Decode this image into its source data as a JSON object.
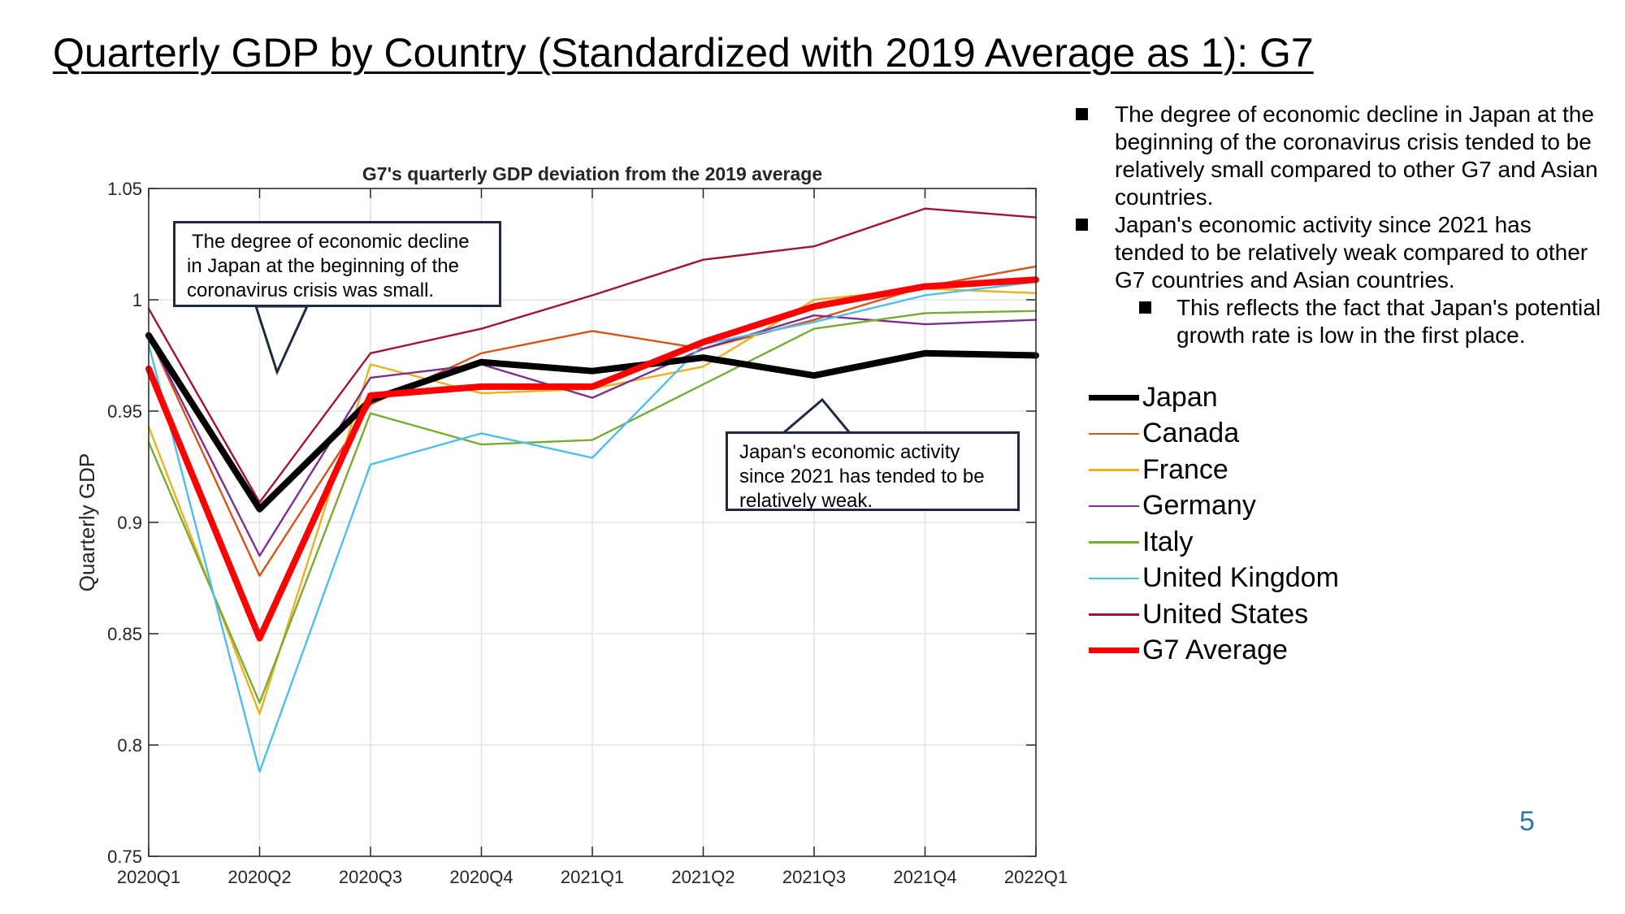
{
  "slide": {
    "title": "Quarterly GDP by Country (Standardized with 2019 Average as 1): G7",
    "page_number": "5"
  },
  "bullets": [
    {
      "level": 1,
      "lines": [
        "The degree of economic decline in Japan at the",
        "beginning of the coronavirus crisis tended to be",
        "relatively small compared to other G7 and Asian",
        "countries."
      ]
    },
    {
      "level": 1,
      "lines": [
        "Japan's economic activity since 2021 has",
        "tended to be relatively weak compared to other",
        "G7 countries and Asian countries."
      ]
    },
    {
      "level": 2,
      "lines": [
        "This reflects the fact that Japan's potential",
        "growth rate is low in the first place."
      ]
    }
  ],
  "callouts": {
    "decline": [
      "The degree of economic decline",
      "in Japan at the beginning of the",
      "coronavirus crisis was small."
    ],
    "weak": [
      "Japan's economic activity",
      "since 2021 has tended to be",
      "relatively weak."
    ]
  },
  "chart_data": {
    "type": "line",
    "title": "G7's quarterly GDP deviation from the 2019 average",
    "xlabel": "",
    "ylabel": "Quarterly GDP",
    "categories": [
      "2020Q1",
      "2020Q2",
      "2020Q3",
      "2020Q4",
      "2021Q1",
      "2021Q2",
      "2021Q3",
      "2021Q4",
      "2022Q1"
    ],
    "ylim": [
      0.75,
      1.05
    ],
    "yticks": [
      0.75,
      0.8,
      0.85,
      0.9,
      0.95,
      1,
      1.05
    ],
    "ytick_labels": [
      "0.75",
      "0.8",
      "0.85",
      "0.9",
      "0.95",
      "1",
      "1.05"
    ],
    "grid": true,
    "legend_position": "right, outside plot",
    "series": [
      {
        "name": "Japan",
        "color": "#000000",
        "emphasis": true,
        "values": [
          0.984,
          0.906,
          0.955,
          0.972,
          0.968,
          0.974,
          0.966,
          0.976,
          0.975
        ]
      },
      {
        "name": "Canada",
        "color": "#d95319",
        "emphasis": false,
        "values": [
          0.984,
          0.876,
          0.953,
          0.976,
          0.986,
          0.978,
          0.991,
          1.006,
          1.015
        ]
      },
      {
        "name": "France",
        "color": "#edb120",
        "emphasis": false,
        "values": [
          0.943,
          0.814,
          0.971,
          0.958,
          0.96,
          0.97,
          1.0,
          1.005,
          1.003
        ]
      },
      {
        "name": "Germany",
        "color": "#7e2f8e",
        "emphasis": false,
        "values": [
          0.984,
          0.885,
          0.965,
          0.971,
          0.956,
          0.978,
          0.993,
          0.989,
          0.991
        ]
      },
      {
        "name": "Italy",
        "color": "#77ac30",
        "emphasis": false,
        "values": [
          0.936,
          0.819,
          0.949,
          0.935,
          0.937,
          0.962,
          0.987,
          0.994,
          0.995
        ]
      },
      {
        "name": "United Kingdom",
        "color": "#4dbeee",
        "emphasis": false,
        "values": [
          0.98,
          0.788,
          0.926,
          0.94,
          0.929,
          0.98,
          0.99,
          1.002,
          1.008
        ]
      },
      {
        "name": "United States",
        "color": "#a2142f",
        "emphasis": false,
        "values": [
          0.996,
          0.909,
          0.976,
          0.987,
          1.002,
          1.018,
          1.024,
          1.041,
          1.037
        ]
      },
      {
        "name": "G7 Average",
        "color": "#ff0000",
        "emphasis": true,
        "values": [
          0.969,
          0.848,
          0.957,
          0.961,
          0.961,
          0.981,
          0.997,
          1.006,
          1.009
        ]
      }
    ]
  }
}
